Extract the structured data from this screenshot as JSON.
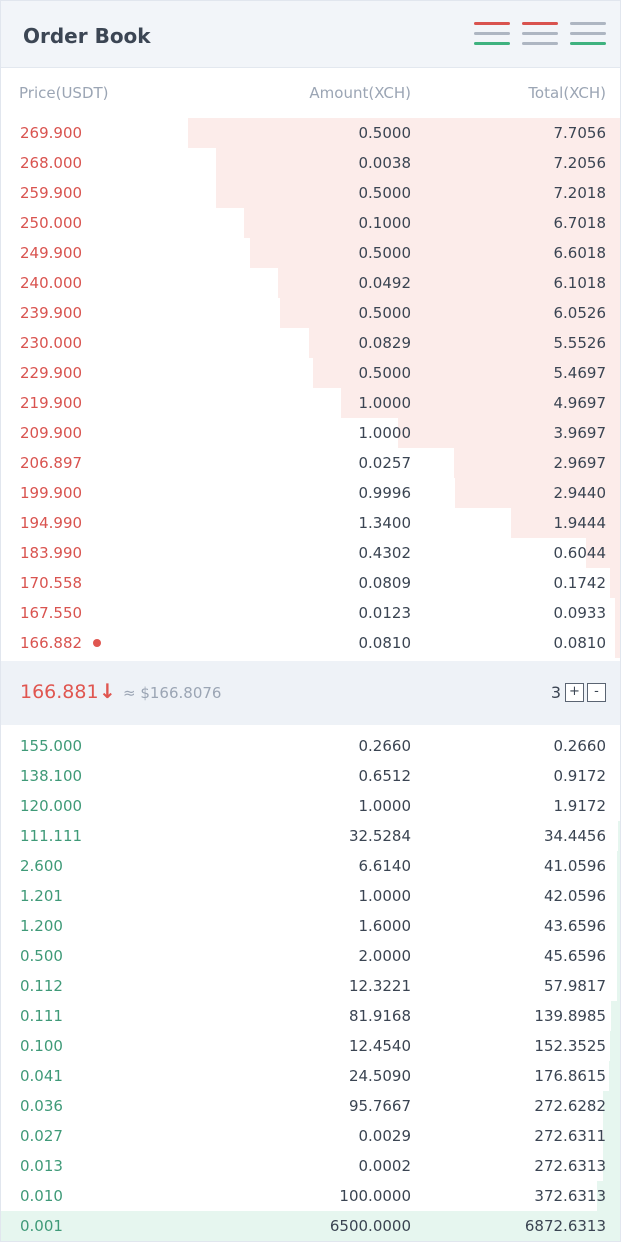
{
  "header": {
    "title": "Order Book",
    "views": [
      {
        "name": "view-both-icon",
        "colors": [
          "#d9534f",
          "#aeb6c2",
          "#3fb27f"
        ]
      },
      {
        "name": "view-asks-icon",
        "colors": [
          "#d9534f",
          "#aeb6c2",
          "#aeb6c2"
        ]
      },
      {
        "name": "view-bids-icon",
        "colors": [
          "#aeb6c2",
          "#aeb6c2",
          "#3fb27f"
        ]
      }
    ]
  },
  "columns": {
    "price": "Price(USDT)",
    "amount": "Amount(XCH)",
    "total": "Total(XCH)"
  },
  "colors": {
    "ask": "#d9534f",
    "bid": "#3f9a78"
  },
  "asks": [
    {
      "price": "269.900",
      "amount": "0.5000",
      "total": "7.7056",
      "depth": 1.0
    },
    {
      "price": "268.000",
      "amount": "0.0038",
      "total": "7.2056",
      "depth": 0.935
    },
    {
      "price": "259.900",
      "amount": "0.5000",
      "total": "7.2018",
      "depth": 0.935
    },
    {
      "price": "250.000",
      "amount": "0.1000",
      "total": "6.7018",
      "depth": 0.87
    },
    {
      "price": "249.900",
      "amount": "0.5000",
      "total": "6.6018",
      "depth": 0.857
    },
    {
      "price": "240.000",
      "amount": "0.0492",
      "total": "6.1018",
      "depth": 0.792
    },
    {
      "price": "239.900",
      "amount": "0.5000",
      "total": "6.0526",
      "depth": 0.786
    },
    {
      "price": "230.000",
      "amount": "0.0829",
      "total": "5.5526",
      "depth": 0.721
    },
    {
      "price": "229.900",
      "amount": "0.5000",
      "total": "5.4697",
      "depth": 0.71
    },
    {
      "price": "219.900",
      "amount": "1.0000",
      "total": "4.9697",
      "depth": 0.645
    },
    {
      "price": "209.900",
      "amount": "1.0000",
      "total": "3.9697",
      "depth": 0.515
    },
    {
      "price": "206.897",
      "amount": "0.0257",
      "total": "2.9697",
      "depth": 0.385
    },
    {
      "price": "199.900",
      "amount": "0.9996",
      "total": "2.9440",
      "depth": 0.382
    },
    {
      "price": "194.990",
      "amount": "1.3400",
      "total": "1.9444",
      "depth": 0.252
    },
    {
      "price": "183.990",
      "amount": "0.4302",
      "total": "0.6044",
      "depth": 0.078
    },
    {
      "price": "170.558",
      "amount": "0.0809",
      "total": "0.1742",
      "depth": 0.023
    },
    {
      "price": "167.550",
      "amount": "0.0123",
      "total": "0.0933",
      "depth": 0.012
    },
    {
      "price": "166.882",
      "amount": "0.0810",
      "total": "0.0810",
      "depth": 0.011,
      "own_order": true
    }
  ],
  "mid": {
    "last_price": "166.881",
    "direction_icon": "arrow-down-icon",
    "usd_value": "≈ $166.8076",
    "precision": "3",
    "plus_label": "+",
    "minus_label": "-"
  },
  "bids": [
    {
      "price": "155.000",
      "amount": "0.2660",
      "total": "0.2660",
      "depth": 0.0
    },
    {
      "price": "138.100",
      "amount": "0.6512",
      "total": "0.9172",
      "depth": 0.0
    },
    {
      "price": "120.000",
      "amount": "1.0000",
      "total": "1.9172",
      "depth": 0.0
    },
    {
      "price": "111.111",
      "amount": "32.5284",
      "total": "34.4456",
      "depth": 0.005
    },
    {
      "price": "2.600",
      "amount": "6.6140",
      "total": "41.0596",
      "depth": 0.006
    },
    {
      "price": "1.201",
      "amount": "1.0000",
      "total": "42.0596",
      "depth": 0.006
    },
    {
      "price": "1.200",
      "amount": "1.6000",
      "total": "43.6596",
      "depth": 0.006
    },
    {
      "price": "0.500",
      "amount": "2.0000",
      "total": "45.6596",
      "depth": 0.007
    },
    {
      "price": "0.112",
      "amount": "12.3221",
      "total": "57.9817",
      "depth": 0.008
    },
    {
      "price": "0.111",
      "amount": "81.9168",
      "total": "139.8985",
      "depth": 0.02
    },
    {
      "price": "0.100",
      "amount": "12.4540",
      "total": "152.3525",
      "depth": 0.022
    },
    {
      "price": "0.041",
      "amount": "24.5090",
      "total": "176.8615",
      "depth": 0.026
    },
    {
      "price": "0.036",
      "amount": "95.7667",
      "total": "272.6282",
      "depth": 0.04
    },
    {
      "price": "0.027",
      "amount": "0.0029",
      "total": "272.6311",
      "depth": 0.04
    },
    {
      "price": "0.013",
      "amount": "0.0002",
      "total": "272.6313",
      "depth": 0.04
    },
    {
      "price": "0.010",
      "amount": "100.0000",
      "total": "372.6313",
      "depth": 0.054
    },
    {
      "price": "0.001",
      "amount": "6500.0000",
      "total": "6872.6313",
      "depth": 1.0
    }
  ]
}
